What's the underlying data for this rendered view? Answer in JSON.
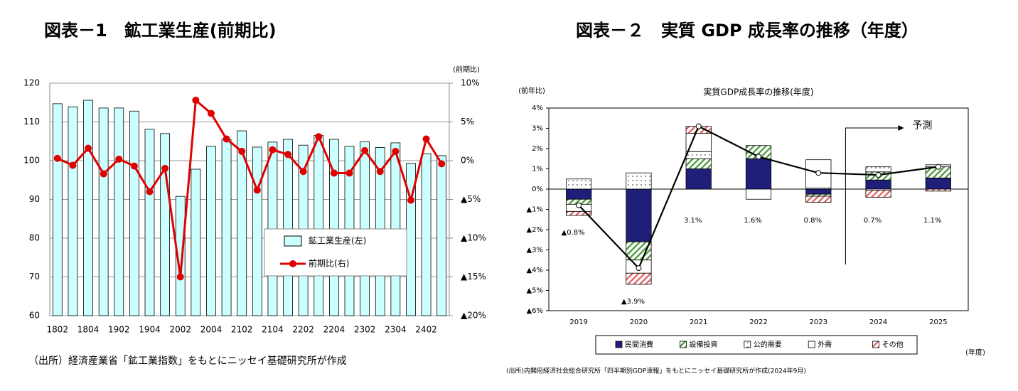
{
  "chart_data": [
    {
      "type": "bar",
      "heading": "図表－1　鉱工業生産(前期比)",
      "y2label": "(前期比)",
      "source": "（出所）経済産業省「鉱工業指数」をもとにニッセイ基礎研究所が作成",
      "categories": [
        "1802",
        null,
        "1804",
        null,
        "1902",
        null,
        "1904",
        null,
        "2002",
        null,
        "2004",
        null,
        "2102",
        null,
        "2104",
        null,
        "2202",
        null,
        "2204",
        null,
        "2302",
        null,
        "2304",
        null,
        "2402",
        null
      ],
      "series": [
        {
          "name": "鉱工業生産(左)",
          "type": "bar",
          "color": "#ccffff",
          "values": [
            114.7,
            113.9,
            115.6,
            113.6,
            113.6,
            112.8,
            108.1,
            107.0,
            90.8,
            97.8,
            103.7,
            105.5,
            107.7,
            103.5,
            104.8,
            105.5,
            104.0,
            106.5,
            105.5,
            103.7,
            104.9,
            103.4,
            104.6,
            99.3,
            101.8,
            101.3
          ]
        },
        {
          "name": "前期比(右)",
          "type": "line",
          "axis": "y2",
          "color": "#e00000",
          "values": [
            0.3,
            -0.6,
            1.6,
            -1.7,
            0.2,
            -0.7,
            -4.0,
            -1.0,
            -15.0,
            7.8,
            6.1,
            2.8,
            1.2,
            -3.8,
            1.4,
            0.8,
            -1.4,
            3.1,
            -1.6,
            -1.6,
            1.3,
            -1.4,
            1.2,
            -5.1,
            2.8,
            -0.4
          ]
        }
      ],
      "ylim": [
        60,
        120
      ],
      "yticks": [
        60,
        70,
        80,
        90,
        100,
        110,
        120
      ],
      "y2lim": [
        -20,
        10
      ],
      "y2ticks": [
        {
          "value": -20,
          "label": "▲20%"
        },
        {
          "value": -15,
          "label": "▲15%"
        },
        {
          "value": -10,
          "label": "▲10%"
        },
        {
          "value": -5,
          "label": "▲5%"
        },
        {
          "value": 0,
          "label": "0%"
        },
        {
          "value": 5,
          "label": "5%"
        },
        {
          "value": 10,
          "label": "10%"
        }
      ],
      "grid": true,
      "legend": "lower right"
    },
    {
      "type": "stacked_bar",
      "heading": "図表－２　実質 GDP 成長率の推移（年度）",
      "title": "実質GDP成長率の推移(年度)",
      "ylabel": "(前年比)",
      "xlabel": "(年度)",
      "annotation": "予測",
      "source": "(出所)内閣府経済社会総合研究所「四半期別GDP速報」をもとにニッセイ基礎研究所が作成(2024年9月)",
      "categories": [
        "2019",
        "2020",
        "2021",
        "2022",
        "2023",
        "2024",
        "2025"
      ],
      "series": [
        {
          "name": "民間消費",
          "type": "bar",
          "color": "#1f1f7a",
          "pattern": null,
          "values": [
            -0.5,
            -2.6,
            1.0,
            1.5,
            -0.25,
            0.45,
            0.55
          ]
        },
        {
          "name": "設備投資",
          "type": "bar",
          "color": "#4a9a3a",
          "pattern": "hatch",
          "values": [
            -0.25,
            -0.9,
            0.5,
            0.65,
            -0.1,
            0.4,
            0.55
          ]
        },
        {
          "name": "公的需要",
          "type": "bar",
          "color": "#000000",
          "pattern": "dots",
          "values": [
            0.5,
            0.8,
            0.35,
            0,
            0.05,
            0.25,
            0.1
          ]
        },
        {
          "name": "外需",
          "type": "bar",
          "color": "#ffffff",
          "pattern": null,
          "values": [
            -0.35,
            -0.65,
            0.9,
            -0.5,
            1.4,
            -0.05,
            0
          ]
        },
        {
          "name": "その他",
          "type": "bar",
          "color": "#e06060",
          "pattern": "hatch",
          "values": [
            -0.2,
            -0.55,
            0.35,
            0,
            -0.3,
            -0.35,
            -0.1
          ]
        },
        {
          "type": "line",
          "color": "#000000",
          "values": [
            -0.8,
            -3.9,
            3.1,
            1.6,
            0.8,
            0.7,
            1.1
          ],
          "value_labels": [
            "▲0.8%",
            "▲3.9%",
            "3.1%",
            "1.6%",
            "0.8%",
            "0.7%",
            "1.1%"
          ]
        }
      ],
      "ylim": [
        -6,
        4
      ],
      "yticks": [
        {
          "value": -6,
          "label": "▲6%"
        },
        {
          "value": -5,
          "label": "▲5%"
        },
        {
          "value": -4,
          "label": "▲4%"
        },
        {
          "value": -3,
          "label": "▲3%"
        },
        {
          "value": -2,
          "label": "▲2%"
        },
        {
          "value": -1,
          "label": "▲1%"
        },
        {
          "value": 0,
          "label": "0%"
        },
        {
          "value": 1,
          "label": "1%"
        },
        {
          "value": 2,
          "label": "2%"
        },
        {
          "value": 3,
          "label": "3%"
        },
        {
          "value": 4,
          "label": "4%"
        }
      ],
      "grid": false,
      "legend": "bottom"
    }
  ]
}
